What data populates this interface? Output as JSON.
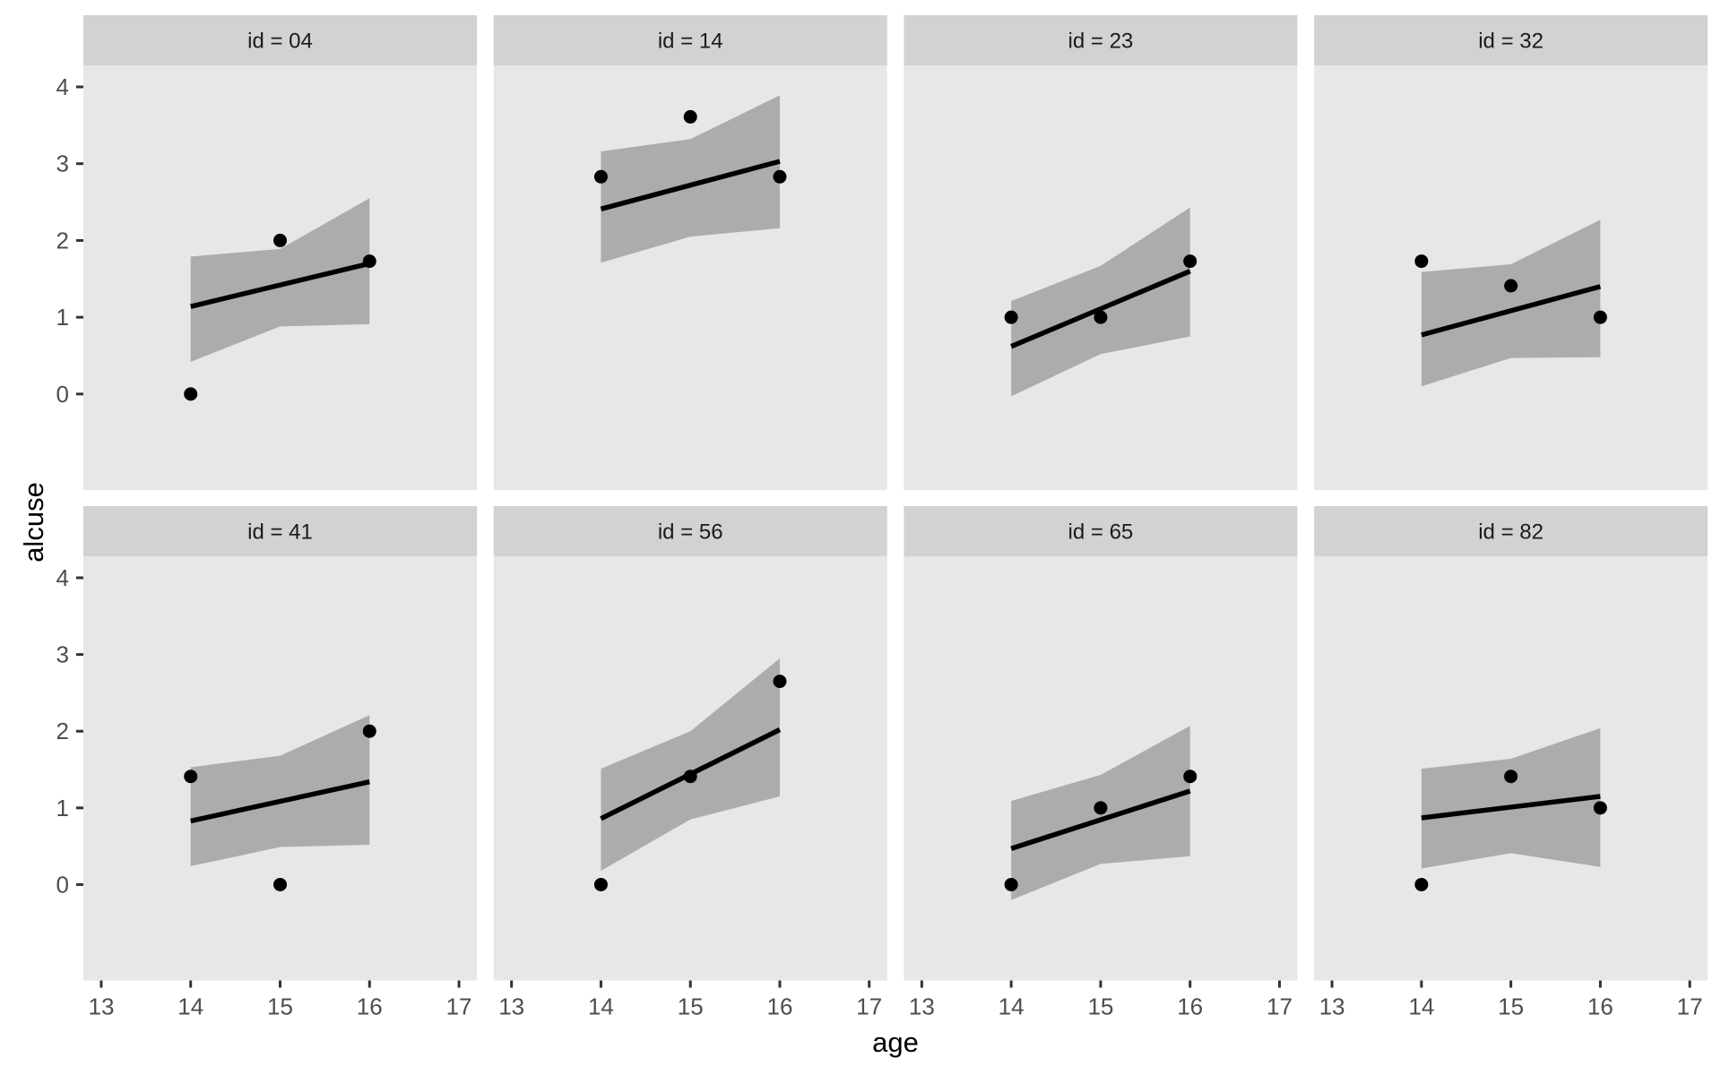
{
  "chart_data": {
    "type": "scatter",
    "description": "Faceted scatter plots with linear fit lines and confidence ribbons (ggplot2-style), one panel per subject id",
    "facet_variable": "id",
    "xlabel": "age",
    "ylabel": "alcuse",
    "x_ticks": [
      13,
      14,
      15,
      16,
      17
    ],
    "y_ticks": [
      0,
      1,
      2,
      3,
      4
    ],
    "xlim": [
      12.8,
      17.2
    ],
    "ylim": [
      -1.25,
      4.28
    ],
    "grid": "off",
    "legend": "none",
    "panels": [
      {
        "id": "04",
        "label": "id = 04",
        "points": {
          "x": [
            14,
            15,
            16
          ],
          "y": [
            0,
            2,
            1.73
          ]
        },
        "fit_line": {
          "x": [
            14,
            16
          ],
          "y": [
            1.14,
            1.7
          ]
        },
        "ribbon": {
          "x": [
            14,
            15,
            16
          ],
          "upper": [
            1.79,
            1.89,
            2.55
          ],
          "lower": [
            0.42,
            0.88,
            0.91
          ]
        }
      },
      {
        "id": "14",
        "label": "id = 14",
        "points": {
          "x": [
            14,
            15,
            16
          ],
          "y": [
            2.83,
            3.61,
            2.83
          ]
        },
        "fit_line": {
          "x": [
            14,
            16
          ],
          "y": [
            2.41,
            3.03
          ]
        },
        "ribbon": {
          "x": [
            14,
            15,
            16
          ],
          "upper": [
            3.16,
            3.32,
            3.89
          ],
          "lower": [
            1.71,
            2.05,
            2.16
          ]
        }
      },
      {
        "id": "23",
        "label": "id = 23",
        "points": {
          "x": [
            14,
            15,
            16
          ],
          "y": [
            1,
            1,
            1.73
          ]
        },
        "fit_line": {
          "x": [
            14,
            16
          ],
          "y": [
            0.62,
            1.6
          ]
        },
        "ribbon": {
          "x": [
            14,
            15,
            16
          ],
          "upper": [
            1.21,
            1.67,
            2.43
          ],
          "lower": [
            -0.03,
            0.52,
            0.75
          ]
        }
      },
      {
        "id": "32",
        "label": "id = 32",
        "points": {
          "x": [
            14,
            15,
            16
          ],
          "y": [
            1.73,
            1.41,
            1
          ]
        },
        "fit_line": {
          "x": [
            14,
            16
          ],
          "y": [
            0.77,
            1.4
          ]
        },
        "ribbon": {
          "x": [
            14,
            15,
            16
          ],
          "upper": [
            1.59,
            1.69,
            2.27
          ],
          "lower": [
            0.1,
            0.47,
            0.48
          ]
        }
      },
      {
        "id": "41",
        "label": "id = 41",
        "points": {
          "x": [
            14,
            15,
            16
          ],
          "y": [
            1.41,
            0,
            2
          ]
        },
        "fit_line": {
          "x": [
            14,
            16
          ],
          "y": [
            0.83,
            1.34
          ]
        },
        "ribbon": {
          "x": [
            14,
            15,
            16
          ],
          "upper": [
            1.53,
            1.68,
            2.21
          ],
          "lower": [
            0.24,
            0.49,
            0.52
          ]
        }
      },
      {
        "id": "56",
        "label": "id = 56",
        "points": {
          "x": [
            14,
            15,
            16
          ],
          "y": [
            0,
            1.41,
            2.65
          ]
        },
        "fit_line": {
          "x": [
            14,
            16
          ],
          "y": [
            0.86,
            2.02
          ]
        },
        "ribbon": {
          "x": [
            14,
            15,
            16
          ],
          "upper": [
            1.51,
            2.0,
            2.95
          ],
          "lower": [
            0.18,
            0.85,
            1.15
          ]
        }
      },
      {
        "id": "65",
        "label": "id = 65",
        "points": {
          "x": [
            14,
            15,
            16
          ],
          "y": [
            0,
            1,
            1.41
          ]
        },
        "fit_line": {
          "x": [
            14,
            16
          ],
          "y": [
            0.47,
            1.22
          ]
        },
        "ribbon": {
          "x": [
            14,
            15,
            16
          ],
          "upper": [
            1.09,
            1.43,
            2.07
          ],
          "lower": [
            -0.2,
            0.27,
            0.37
          ]
        }
      },
      {
        "id": "82",
        "label": "id = 82",
        "points": {
          "x": [
            14,
            15,
            16
          ],
          "y": [
            0,
            1.41,
            1
          ]
        },
        "fit_line": {
          "x": [
            14,
            16
          ],
          "y": [
            0.87,
            1.15
          ]
        },
        "ribbon": {
          "x": [
            14,
            15,
            16
          ],
          "upper": [
            1.51,
            1.64,
            2.04
          ],
          "lower": [
            0.21,
            0.41,
            0.23
          ]
        }
      }
    ],
    "colors": {
      "panel_background": "#E7E7E7",
      "strip_background": "#D2D2D2",
      "ribbon": "#ACACAC",
      "fit_line": "#000000",
      "point": "#000000",
      "tick_mark": "#333333",
      "tick_label": "#4D4D4D",
      "strip_text": "#1A1A1A",
      "axis_title": "#000000",
      "plot_background": "#FFFFFF"
    }
  }
}
